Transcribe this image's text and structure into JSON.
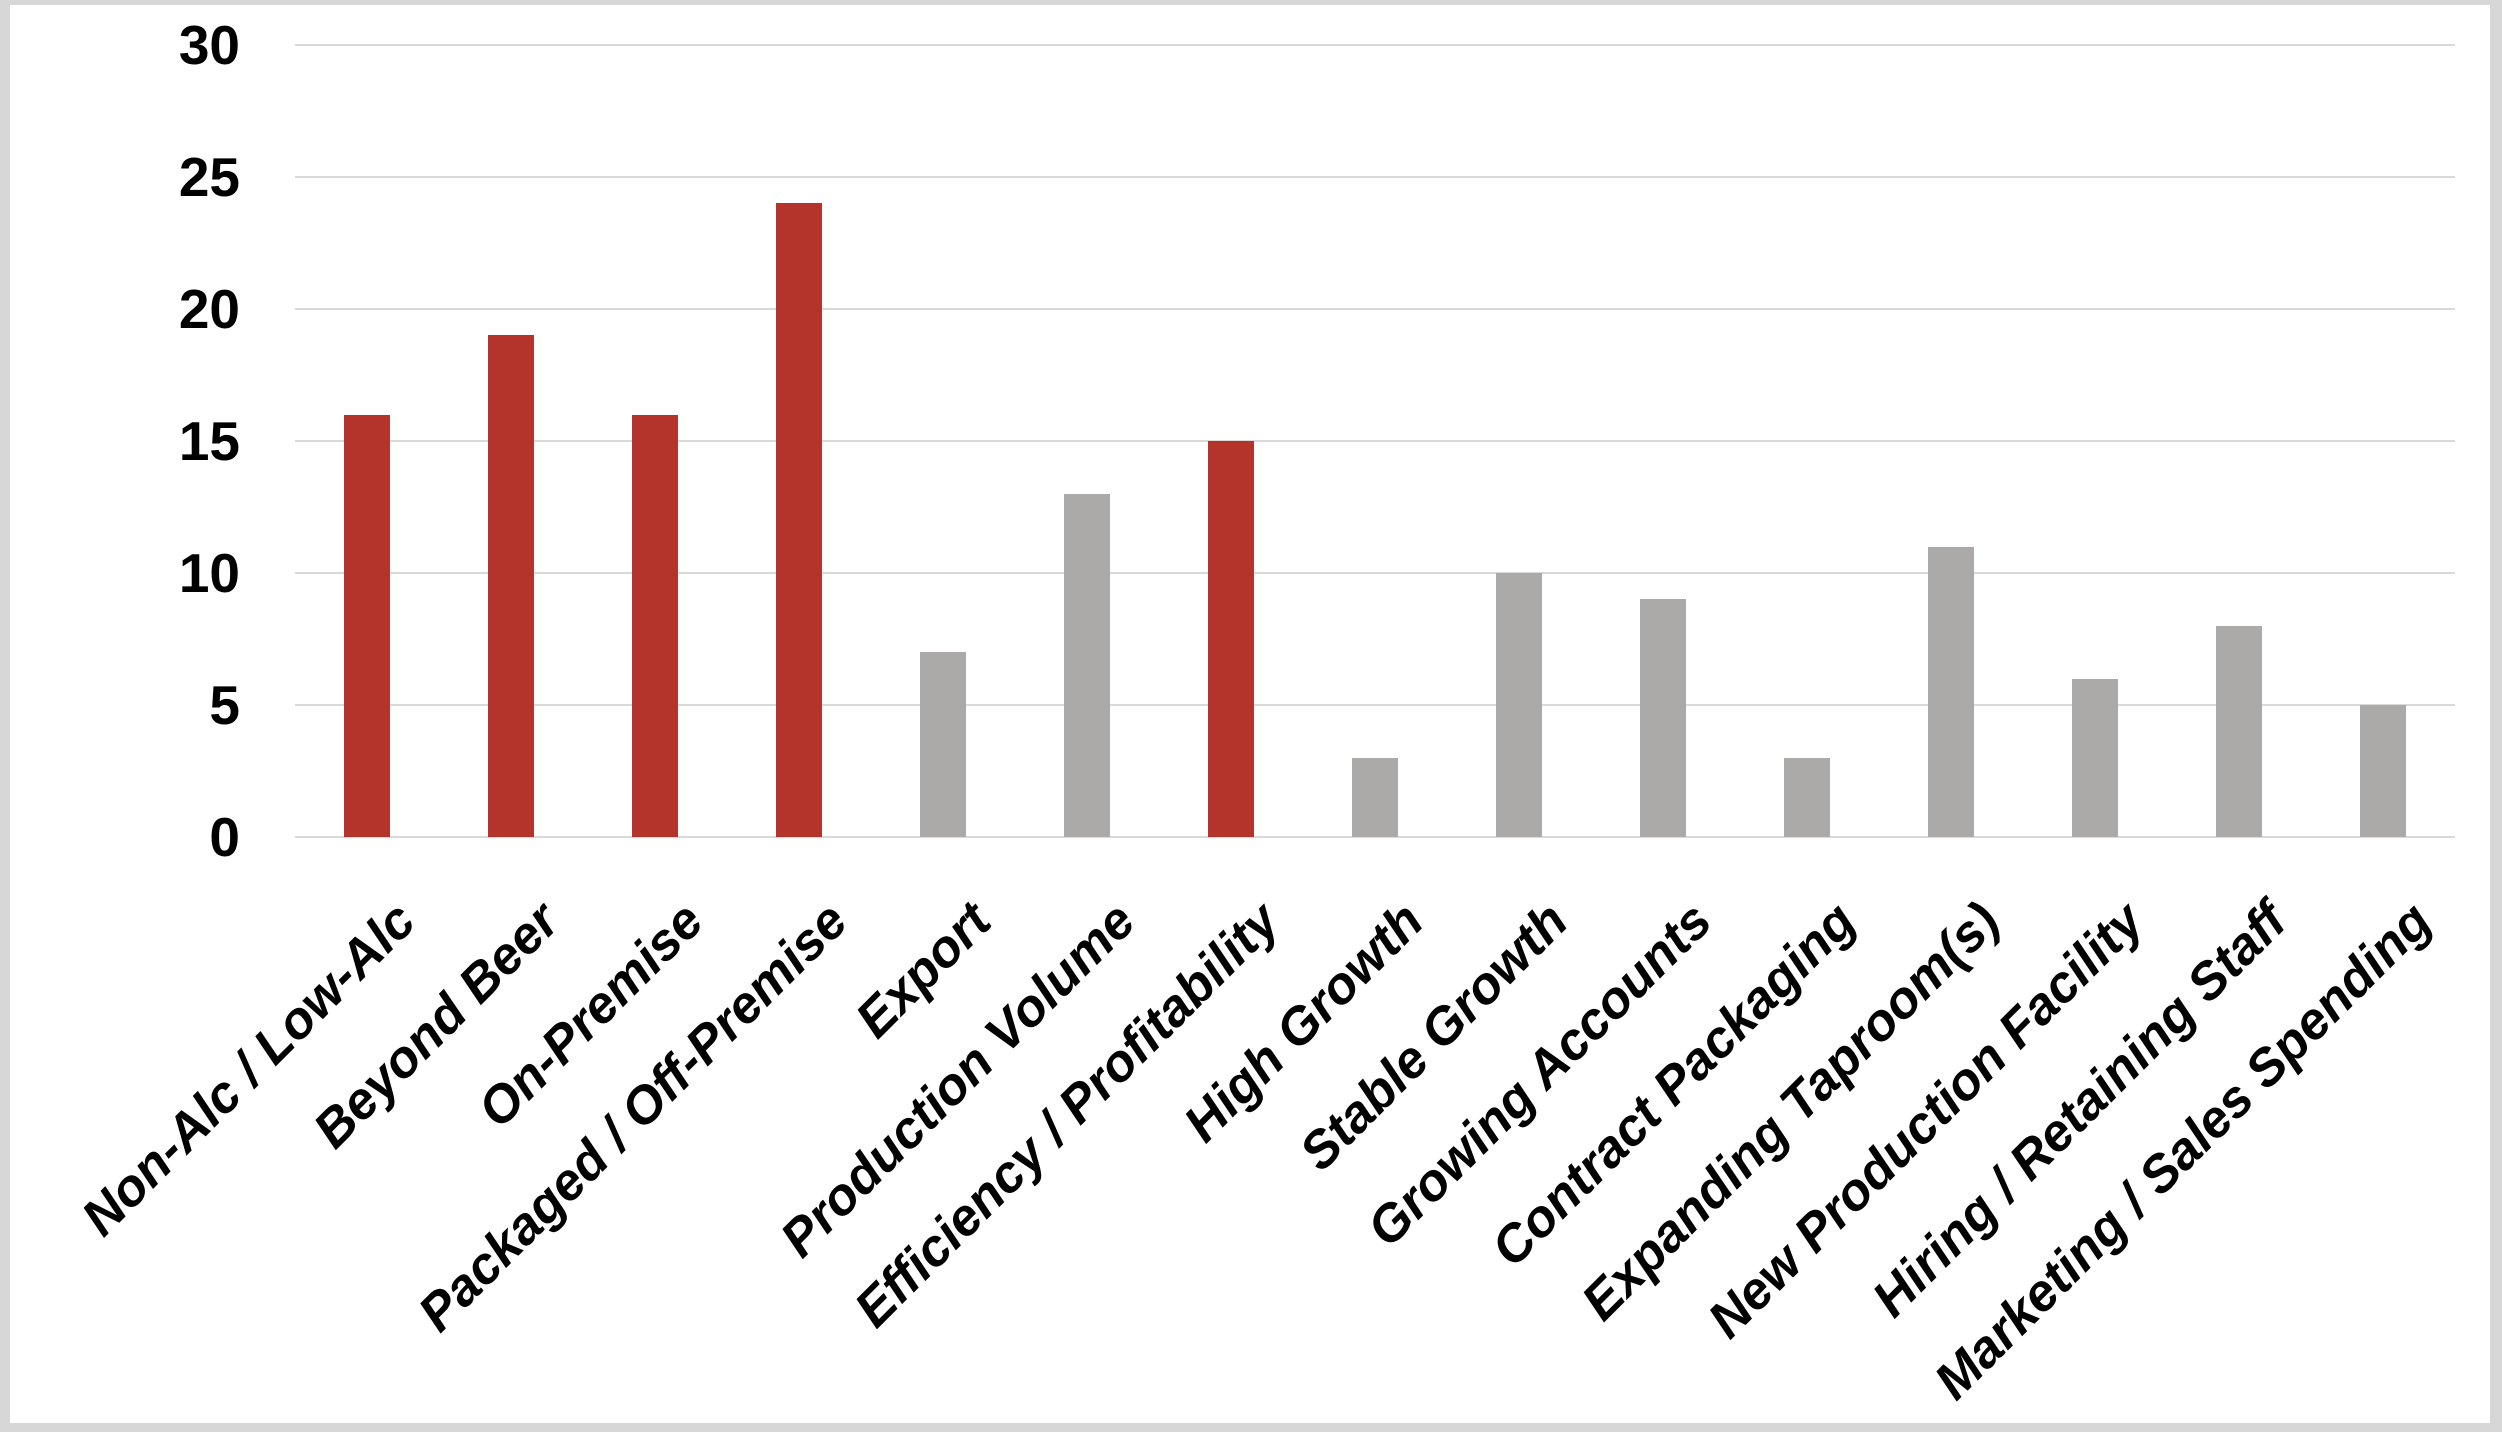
{
  "chart_data": {
    "type": "bar",
    "title": "",
    "xlabel": "",
    "ylabel": "",
    "categories": [
      "Non-Alc / Low-Alc",
      "Beyond Beer",
      "On-Premise",
      "Packaged / Off-Premise",
      "Export",
      "Production Volume",
      "Efficiency / Profitability",
      "High Growth",
      "Stable Growth",
      "Growing Accounts",
      "Contract Packaging",
      "Expanding Taproom(s)",
      "New Production Facility",
      "Hiring / Retaining Staff",
      "Marketing / Sales Spending"
    ],
    "values": [
      16,
      19,
      16,
      24,
      7,
      13,
      15,
      3,
      10,
      9,
      3,
      11,
      6,
      8,
      5
    ],
    "highlighted": [
      true,
      true,
      true,
      true,
      false,
      false,
      true,
      false,
      false,
      false,
      false,
      false,
      false,
      false,
      false
    ],
    "y_ticks": [
      0,
      5,
      10,
      15,
      20,
      25,
      30
    ],
    "ylim": [
      0,
      30
    ],
    "grid": true,
    "legend": "none",
    "colors": {
      "highlight_bar": "#B4342C",
      "default_bar": "#ACA9A9",
      "gridline": "#D9D9D9",
      "tick_text": "#000000",
      "plot_background": "#FFFFFF",
      "frame": "#D7D7D7"
    }
  }
}
